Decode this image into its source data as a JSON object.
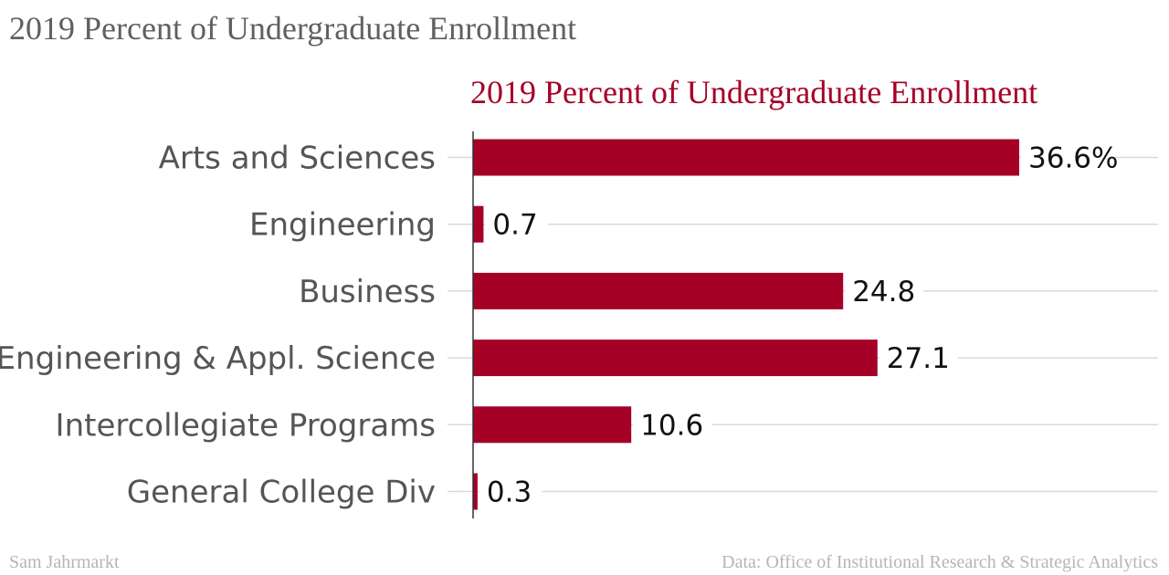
{
  "header": {
    "title": "2019 Percent of Undergraduate Enrollment"
  },
  "chart_data": {
    "type": "bar",
    "orientation": "horizontal",
    "title": "2019 Percent of Undergraduate Enrollment",
    "categories": [
      "Arts and Sciences",
      "Engineering",
      "Business",
      "Engineering & Appl. Science",
      "Intercollegiate Programs",
      "General College Div"
    ],
    "values": [
      36.6,
      0.7,
      24.8,
      27.1,
      10.6,
      0.3
    ],
    "value_labels": [
      "36.6%",
      "0.7",
      "24.8",
      "27.1",
      "10.6",
      "0.3"
    ],
    "xlim": [
      0,
      36.6
    ],
    "xlabel": "",
    "ylabel": "",
    "grid": true,
    "legend": "none",
    "bar_color": "#a50026",
    "title_color": "#a50026"
  },
  "footer": {
    "credit": "Sam Jahrmarkt",
    "source": "Data: Office of Institutional Research & Strategic Analytics"
  }
}
